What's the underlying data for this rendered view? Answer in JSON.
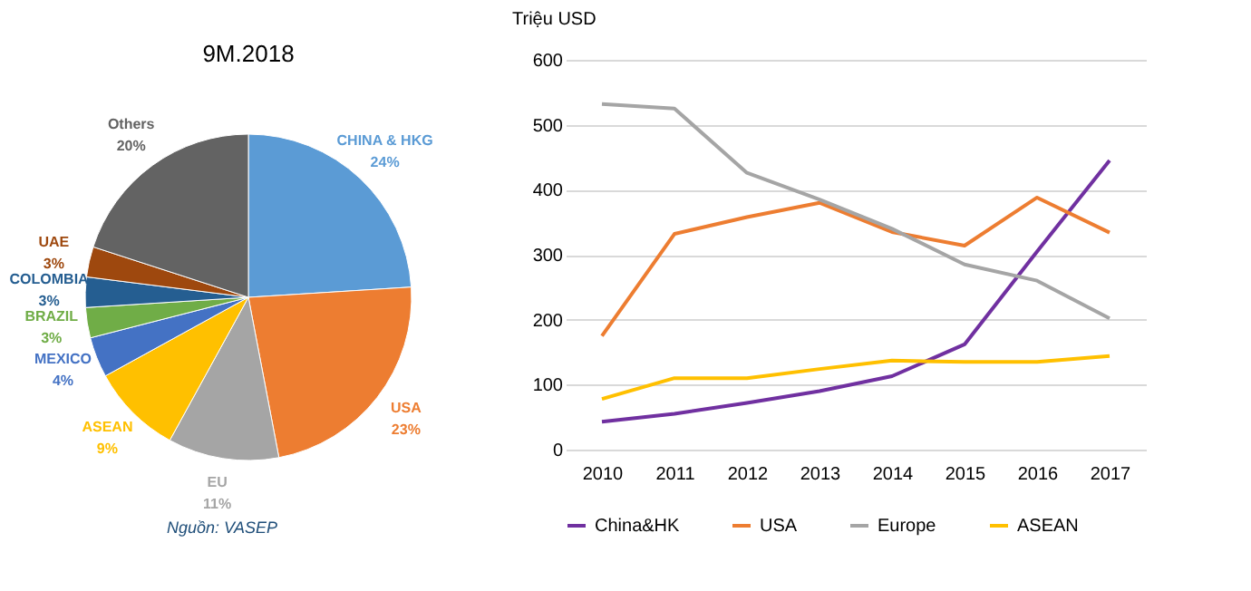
{
  "chart_data": [
    {
      "type": "pie",
      "title": "9M.2018",
      "categories": [
        "CHINA & HKG",
        "USA",
        "EU",
        "ASEAN",
        "MEXICO",
        "BRAZIL",
        "COLOMBIA",
        "UAE",
        "Others"
      ],
      "values": [
        24,
        23,
        11,
        9,
        4,
        3,
        3,
        3,
        20
      ],
      "value_labels": [
        "24%",
        "23%",
        "11%",
        "9%",
        "4%",
        "3%",
        "3%",
        "3%",
        "20%"
      ],
      "colors": [
        "#5b9bd5",
        "#ed7d31",
        "#a5a5a5",
        "#ffc000",
        "#4472c4",
        "#70ad47",
        "#255e91",
        "#9e480e",
        "#636363"
      ],
      "annotations": [
        "Nguồn: VASEP"
      ]
    },
    {
      "type": "line",
      "ylabel": "Triệu USD",
      "categories": [
        "2010",
        "2011",
        "2012",
        "2013",
        "2014",
        "2015",
        "2016",
        "2017"
      ],
      "series": [
        {
          "name": "China&HK",
          "color": "#7030a0",
          "values": [
            43,
            55,
            72,
            90,
            113,
            162,
            305,
            445
          ]
        },
        {
          "name": "USA",
          "color": "#ed7d31",
          "values": [
            175,
            332,
            358,
            380,
            335,
            314,
            388,
            334
          ]
        },
        {
          "name": "Europe",
          "color": "#a5a5a5",
          "values": [
            532,
            525,
            426,
            385,
            340,
            285,
            260,
            202
          ]
        },
        {
          "name": "ASEAN",
          "color": "#ffc000",
          "values": [
            78,
            110,
            110,
            124,
            137,
            135,
            135,
            144
          ]
        }
      ],
      "ylim": [
        0,
        600
      ],
      "yticks": [
        0,
        100,
        200,
        300,
        400,
        500,
        600
      ],
      "grid": "y",
      "legend": "bottom"
    }
  ]
}
